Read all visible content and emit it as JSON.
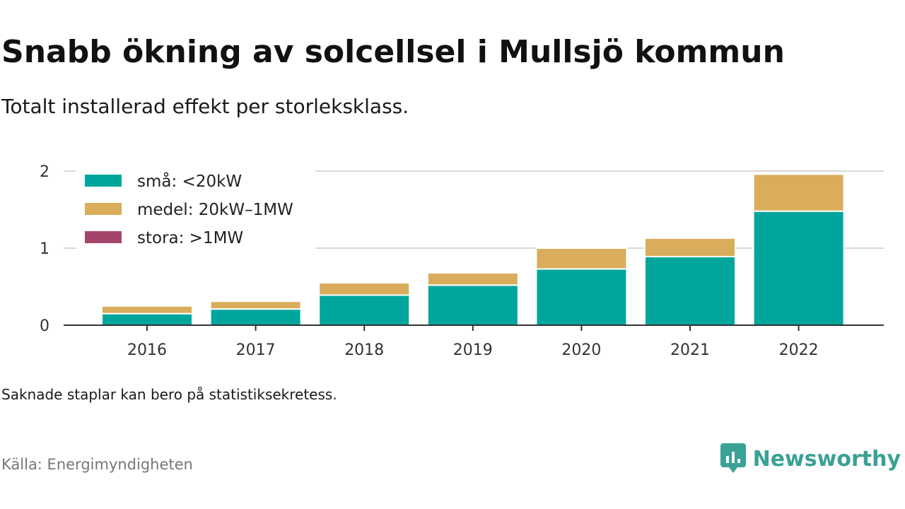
{
  "title": "Snabb ökning av solcellsel i Mullsjö kommun",
  "subtitle": "Totalt installerad effekt per storleksklass.",
  "note": "Saknade staplar kan bero på statistiksekretess.",
  "source": "Källa: Energimyndigheten",
  "brand": {
    "name": "Newsworthy",
    "icon": "newsworthy-logo-icon",
    "color": "#3aa195"
  },
  "chart_data": {
    "type": "bar",
    "stacked": true,
    "categories": [
      "2016",
      "2017",
      "2018",
      "2019",
      "2020",
      "2021",
      "2022"
    ],
    "series": [
      {
        "name": "små: <20kW",
        "color": "#00a69c",
        "values": [
          0.15,
          0.21,
          0.39,
          0.52,
          0.73,
          0.89,
          1.48
        ]
      },
      {
        "name": "medel: 20kW–1MW",
        "color": "#d9ad5b",
        "values": [
          0.1,
          0.1,
          0.16,
          0.16,
          0.27,
          0.24,
          0.48
        ]
      },
      {
        "name": "stora: >1MW",
        "color": "#a3446b",
        "values": [
          0,
          0,
          0,
          0,
          0,
          0,
          0
        ]
      }
    ],
    "ylim": [
      0,
      2
    ],
    "yticks": [
      "0",
      "1",
      "2"
    ],
    "xlabel": "",
    "ylabel": "",
    "grid": true,
    "legend_position": "top-left"
  }
}
